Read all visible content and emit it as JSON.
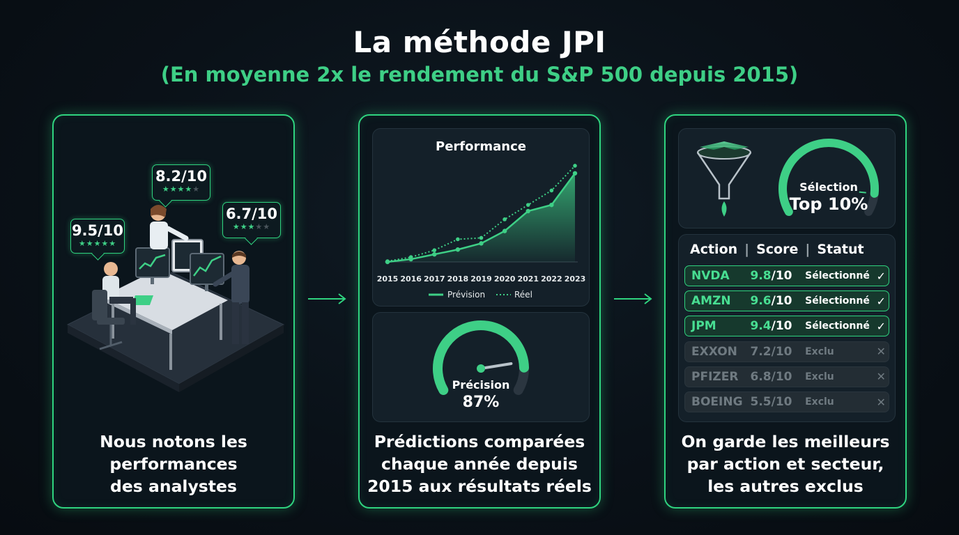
{
  "header": {
    "title": "La méthode JPI",
    "subtitle": "(En moyenne 2x le rendement du S&P 500 depuis 2015)"
  },
  "colors": {
    "accent": "#2fd37f",
    "accent_text": "#3ecf86",
    "background": "#0a1118",
    "excluded": "#6f7a81"
  },
  "card1": {
    "bubbles": [
      {
        "score": "9.5/10",
        "rating": 5
      },
      {
        "score": "8.2/10",
        "rating": 4
      },
      {
        "score": "6.7/10",
        "rating": 3
      }
    ],
    "caption": "Nous notons les\nperformances\ndes analystes"
  },
  "card2": {
    "chart_data": {
      "type": "line",
      "title": "Performance",
      "categories": [
        "2015",
        "2016",
        "2017",
        "2018",
        "2019",
        "2020",
        "2021",
        "2022",
        "2023"
      ],
      "series": [
        {
          "name": "Prévision",
          "style": "solid-area",
          "values": [
            0,
            4,
            11,
            18,
            27,
            45,
            74,
            83,
            129
          ]
        },
        {
          "name": "Réel",
          "style": "dotted",
          "values": [
            1,
            7,
            17,
            33,
            35,
            62,
            83,
            104,
            140
          ]
        }
      ],
      "ylim": [
        0,
        145
      ],
      "legend": "bottom"
    },
    "gauge": {
      "label": "Précision",
      "value_text": "87%",
      "value": 0.87
    },
    "caption": "Prédictions comparées\nchaque année depuis\n2015 aux résultats réels"
  },
  "card3": {
    "funnel_icon": "funnel-icon",
    "gauge": {
      "label": "Sélection",
      "value_text": "Top 10%",
      "value": 0.9
    },
    "table": {
      "headers": [
        "Action",
        "Score",
        "Statut"
      ],
      "rows": [
        {
          "ticker": "NVDA",
          "score": "9.8",
          "denominator": "/10",
          "status": "Sélectionné",
          "selected": true
        },
        {
          "ticker": "AMZN",
          "score": "9.6",
          "denominator": "/10",
          "status": "Sélectionné",
          "selected": true
        },
        {
          "ticker": "JPM",
          "score": "9.4",
          "denominator": "/10",
          "status": "Sélectionné",
          "selected": true
        },
        {
          "ticker": "EXXON",
          "score": "7.2",
          "denominator": "/10",
          "status": "Exclu",
          "selected": false
        },
        {
          "ticker": "PFIZER",
          "score": "6.8",
          "denominator": "/10",
          "status": "Exclu",
          "selected": false
        },
        {
          "ticker": "BOEING",
          "score": "5.5",
          "denominator": "/10",
          "status": "Exclu",
          "selected": false
        }
      ]
    },
    "caption": "On garde les meilleurs\npar action et secteur,\nles autres exclus"
  }
}
